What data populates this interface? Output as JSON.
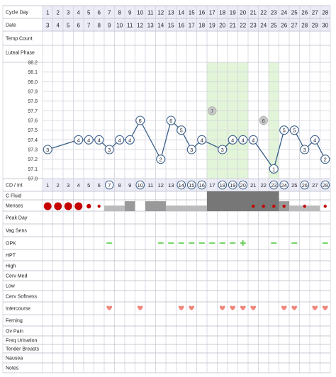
{
  "row_labels": {
    "cycle_day": "Cycle Day",
    "date": "Date",
    "temp_count": "Temp Count",
    "luteal_phase": "Luteal Phase",
    "cd_int": "CD / Int",
    "c_fluid": "C Fluid",
    "menses": "Menses",
    "peak_day": "Peak Day",
    "vag_sens": "Vag Sens",
    "opk": "OPK",
    "hpt": "HPT",
    "high": "High",
    "cerv_med": "Cerv Med",
    "low": "Low",
    "cerv_softness": "Cerv Softness",
    "intercourse": "Intercourse",
    "ferning": "Ferning",
    "ov_pain": "Ov Pain",
    "freq_urination": "Freq Urination",
    "tender_breasts": "Tender Breasts",
    "nausea": "Nausea",
    "notes": "Notes"
  },
  "days": [
    1,
    2,
    3,
    4,
    5,
    6,
    7,
    8,
    9,
    10,
    11,
    12,
    13,
    14,
    15,
    16,
    17,
    18,
    19,
    20,
    21,
    22,
    23,
    24,
    25,
    26,
    27,
    28
  ],
  "dates": [
    3,
    4,
    5,
    6,
    7,
    8,
    9,
    10,
    11,
    12,
    13,
    14,
    15,
    16,
    17,
    18,
    19,
    20,
    21,
    22,
    23,
    24,
    25,
    26,
    27,
    28,
    29,
    30
  ],
  "cd_int_circled": [
    7,
    10,
    14,
    15,
    16,
    18,
    19,
    20,
    23,
    24,
    26,
    28
  ],
  "colors": {
    "header_bg": "#ececf6",
    "highlight_green": "#e3f5d8",
    "line_blue": "#3a5f8a",
    "grid": "#d2d2de",
    "menses_red": "#c40000",
    "opk_green": "#55cc44",
    "heart_pink": "#f0857a",
    "fluid_dark": "#777777",
    "fluid_light": "#bbbbbb"
  },
  "chart_data": {
    "type": "line",
    "ylim": [
      97.0,
      98.2
    ],
    "y_ticks": [
      "98.2",
      "98.1",
      "98.0",
      "97.9",
      "97.8",
      "97.7",
      "97.6",
      "97.5",
      "97.4",
      "97.3",
      "97.2",
      "97.1",
      "97.0"
    ],
    "temps": [
      {
        "day": 1,
        "temp": 97.3,
        "label": "3"
      },
      {
        "day": 4,
        "temp": 97.4,
        "label": "4"
      },
      {
        "day": 5,
        "temp": 97.4,
        "label": "4"
      },
      {
        "day": 6,
        "temp": 97.4,
        "label": "4"
      },
      {
        "day": 7,
        "temp": 97.3,
        "label": "3"
      },
      {
        "day": 8,
        "temp": 97.4,
        "label": "4"
      },
      {
        "day": 9,
        "temp": 97.4,
        "label": "4"
      },
      {
        "day": 10,
        "temp": 97.6,
        "label": "6"
      },
      {
        "day": 12,
        "temp": 97.2,
        "label": "2"
      },
      {
        "day": 13,
        "temp": 97.6,
        "label": "6"
      },
      {
        "day": 14,
        "temp": 97.5,
        "label": "5"
      },
      {
        "day": 15,
        "temp": 97.3,
        "label": "3"
      },
      {
        "day": 16,
        "temp": 97.4,
        "label": "4"
      },
      {
        "day": 18,
        "temp": 97.3,
        "label": "3"
      },
      {
        "day": 19,
        "temp": 97.4,
        "label": "4"
      },
      {
        "day": 20,
        "temp": 97.4,
        "label": "4"
      },
      {
        "day": 21,
        "temp": 97.4,
        "label": "4"
      },
      {
        "day": 23,
        "temp": 97.1,
        "label": "1"
      },
      {
        "day": 24,
        "temp": 97.5,
        "label": "5"
      },
      {
        "day": 25,
        "temp": 97.5,
        "label": "5"
      },
      {
        "day": 26,
        "temp": 97.3,
        "label": "3"
      },
      {
        "day": 27,
        "temp": 97.4,
        "label": "4"
      },
      {
        "day": 28,
        "temp": 97.2,
        "label": "2"
      }
    ],
    "discarded": [
      {
        "day": 17,
        "temp": 97.7,
        "label": "7"
      },
      {
        "day": 22,
        "temp": 97.6,
        "label": "6"
      }
    ],
    "highlighted_days": [
      17,
      18,
      19,
      20,
      23
    ]
  },
  "c_fluid": [
    {
      "day": 7,
      "level": "light"
    },
    {
      "day": 8,
      "level": "light"
    },
    {
      "day": 9,
      "level": "medium"
    },
    {
      "day": 11,
      "level": "medium"
    },
    {
      "day": 12,
      "level": "medium"
    },
    {
      "day": 13,
      "level": "light"
    },
    {
      "day": 14,
      "level": "light"
    },
    {
      "day": 15,
      "level": "light"
    },
    {
      "day": 16,
      "level": "light"
    },
    {
      "day": 17,
      "level": "dark"
    },
    {
      "day": 18,
      "level": "dark"
    },
    {
      "day": 19,
      "level": "dark"
    },
    {
      "day": 20,
      "level": "dark"
    },
    {
      "day": 21,
      "level": "dark"
    },
    {
      "day": 22,
      "level": "dark"
    },
    {
      "day": 23,
      "level": "dark"
    },
    {
      "day": 24,
      "level": "medium"
    },
    {
      "day": 25,
      "level": "light"
    },
    {
      "day": 26,
      "level": "light"
    },
    {
      "day": 27,
      "level": "light"
    }
  ],
  "menses": [
    {
      "day": 1,
      "flow": "heavy"
    },
    {
      "day": 2,
      "flow": "heavy"
    },
    {
      "day": 3,
      "flow": "heavy"
    },
    {
      "day": 4,
      "flow": "heavy"
    },
    {
      "day": 5,
      "flow": "light"
    },
    {
      "day": 6,
      "flow": "spotting"
    },
    {
      "day": 21,
      "flow": "spotting"
    },
    {
      "day": 22,
      "flow": "spotting"
    },
    {
      "day": 23,
      "flow": "spotting"
    },
    {
      "day": 24,
      "flow": "spotting"
    },
    {
      "day": 26,
      "flow": "spotting"
    },
    {
      "day": 28,
      "flow": "spotting"
    }
  ],
  "opk": [
    {
      "day": 7,
      "result": "negative"
    },
    {
      "day": 12,
      "result": "negative"
    },
    {
      "day": 13,
      "result": "negative"
    },
    {
      "day": 14,
      "result": "negative"
    },
    {
      "day": 15,
      "result": "negative"
    },
    {
      "day": 16,
      "result": "negative"
    },
    {
      "day": 17,
      "result": "negative"
    },
    {
      "day": 18,
      "result": "negative"
    },
    {
      "day": 19,
      "result": "negative"
    },
    {
      "day": 20,
      "result": "positive"
    },
    {
      "day": 23,
      "result": "negative"
    },
    {
      "day": 25,
      "result": "negative"
    },
    {
      "day": 28,
      "result": "negative"
    }
  ],
  "intercourse": [
    7,
    10,
    14,
    15,
    18,
    19,
    20,
    21,
    24,
    25,
    27,
    28
  ]
}
